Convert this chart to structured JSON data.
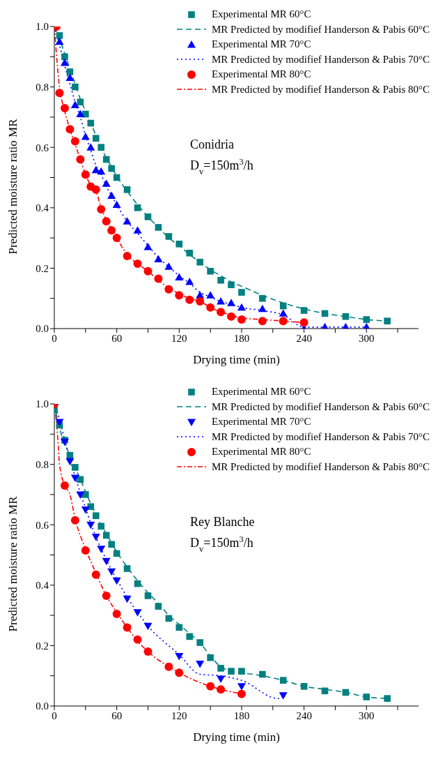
{
  "chart_data": [
    {
      "type": "scatter",
      "xlabel": "Drying time (min)",
      "ylabel": "Predicted moisture ratio MR",
      "annotations": [
        "Conidria",
        "D$_{v}$=150m$^{3}$/h"
      ],
      "xlim": [
        0,
        350
      ],
      "ylim": [
        0,
        1
      ],
      "xticks": [
        0,
        {
          "value": 30,
          "label": null
        },
        60,
        {
          "value": 90,
          "label": null
        },
        120,
        {
          "value": 150,
          "label": null
        },
        180,
        {
          "value": 210,
          "label": null
        },
        240,
        {
          "value": 270,
          "label": null
        },
        300,
        {
          "value": 330,
          "label": null
        }
      ],
      "yticks": [
        {
          "value": 0,
          "label": "0.0"
        },
        {
          "value": 0.1,
          "label": null
        },
        {
          "value": 0.2,
          "label": "0.2"
        },
        {
          "value": 0.3,
          "label": null
        },
        {
          "value": 0.4,
          "label": "0.4"
        },
        {
          "value": 0.5,
          "label": null
        },
        {
          "value": 0.6,
          "label": "0.6"
        },
        {
          "value": 0.7,
          "label": null
        },
        {
          "value": 0.8,
          "label": "0.8"
        },
        {
          "value": 0.9,
          "label": null
        },
        {
          "value": 1,
          "label": "1.0"
        }
      ],
      "grid": false,
      "legend": "top right",
      "series": [
        {
          "name": "Experimental MR 60°C",
          "color": "#008080",
          "marker": "square",
          "x": [
            5,
            10,
            15,
            20,
            25,
            30,
            35,
            40,
            45,
            50,
            55,
            60,
            70,
            80,
            90,
            100,
            110,
            120,
            130,
            140,
            150,
            160,
            170,
            180,
            200,
            220,
            240,
            260,
            280,
            300,
            320
          ],
          "values": [
            0.97,
            0.9,
            0.85,
            0.8,
            0.75,
            0.71,
            0.68,
            0.63,
            0.6,
            0.56,
            0.53,
            0.5,
            0.46,
            0.4,
            0.37,
            0.335,
            0.305,
            0.28,
            0.25,
            0.22,
            0.19,
            0.16,
            0.145,
            0.12,
            0.1,
            0.075,
            0.06,
            0.05,
            0.04,
            0.03,
            0.025
          ]
        },
        {
          "type": "line",
          "name": "MR Predicted by modifief Handerson & Pabis 60°C",
          "color": "#008080",
          "line_style": "dashed",
          "x": [
            0,
            5,
            10,
            15,
            20,
            25,
            30,
            35,
            40,
            45,
            50,
            55,
            60,
            70,
            80,
            90,
            100,
            110,
            120,
            130,
            140,
            150,
            160,
            170,
            180,
            200,
            220,
            240,
            260,
            280,
            300,
            320
          ],
          "values": [
            1,
            0.96,
            0.91,
            0.86,
            0.81,
            0.76,
            0.72,
            0.68,
            0.64,
            0.6,
            0.565,
            0.535,
            0.505,
            0.455,
            0.41,
            0.37,
            0.335,
            0.3,
            0.275,
            0.245,
            0.22,
            0.195,
            0.175,
            0.155,
            0.14,
            0.11,
            0.085,
            0.065,
            0.05,
            0.04,
            0.03,
            0.025
          ]
        },
        {
          "name": "Experimental MR 70°C",
          "color": "#0000ff",
          "marker": "triangle",
          "x": [
            5,
            10,
            15,
            20,
            25,
            30,
            35,
            40,
            45,
            50,
            55,
            60,
            70,
            80,
            90,
            100,
            110,
            120,
            130,
            140,
            150,
            160,
            170,
            180,
            200,
            220,
            240,
            260,
            280,
            300
          ],
          "values": [
            0.95,
            0.88,
            0.83,
            0.74,
            0.71,
            0.635,
            0.6,
            0.525,
            0.52,
            0.48,
            0.44,
            0.41,
            0.355,
            0.325,
            0.27,
            0.23,
            0.205,
            0.17,
            0.155,
            0.11,
            0.11,
            0.09,
            0.085,
            0.07,
            0.065,
            0.05,
            0.0,
            0.005,
            0.005,
            0.005
          ]
        },
        {
          "type": "line",
          "name": "MR Predicted by modifief Handerson & Pabis 70°C",
          "color": "#0000ff",
          "line_style": "dotted",
          "x": [
            0,
            5,
            10,
            15,
            20,
            25,
            30,
            35,
            40,
            45,
            50,
            55,
            60,
            70,
            80,
            90,
            100,
            110,
            120,
            130,
            140,
            150,
            160,
            170,
            180,
            200,
            220,
            240,
            260,
            280,
            300
          ],
          "values": [
            1,
            0.94,
            0.87,
            0.81,
            0.75,
            0.7,
            0.64,
            0.59,
            0.54,
            0.51,
            0.47,
            0.44,
            0.41,
            0.355,
            0.315,
            0.275,
            0.235,
            0.205,
            0.175,
            0.15,
            0.12,
            0.105,
            0.09,
            0.08,
            0.07,
            0.06,
            0.045,
            0.005,
            0.005,
            0.005,
            0.005
          ]
        },
        {
          "name": "Experimental MR 80°C",
          "color": "#ff0000",
          "marker": "circle",
          "x": [
            2,
            5,
            10,
            15,
            20,
            25,
            30,
            35,
            40,
            45,
            50,
            55,
            60,
            70,
            80,
            90,
            100,
            110,
            120,
            130,
            140,
            150,
            160,
            170,
            180,
            200,
            220,
            240
          ],
          "values": [
            1,
            0.78,
            0.73,
            0.66,
            0.62,
            0.56,
            0.51,
            0.47,
            0.46,
            0.395,
            0.355,
            0.325,
            0.3,
            0.24,
            0.215,
            0.19,
            0.165,
            0.13,
            0.11,
            0.095,
            0.09,
            0.07,
            0.055,
            0.04,
            0.03,
            0.025,
            0.025,
            0.02
          ]
        },
        {
          "type": "line",
          "name": "MR Predicted by modifief Handerson & Pabis 80°C",
          "color": "#ff0000",
          "line_style": "dashdot",
          "x": [
            0,
            5,
            10,
            15,
            20,
            25,
            30,
            35,
            40,
            45,
            50,
            55,
            60,
            70,
            80,
            90,
            100,
            110,
            120,
            130,
            140,
            150,
            160,
            170,
            180,
            200,
            220,
            240
          ],
          "values": [
            1,
            0.8,
            0.72,
            0.66,
            0.61,
            0.56,
            0.51,
            0.475,
            0.455,
            0.4,
            0.36,
            0.33,
            0.3,
            0.245,
            0.215,
            0.19,
            0.16,
            0.135,
            0.115,
            0.1,
            0.09,
            0.07,
            0.055,
            0.045,
            0.035,
            0.03,
            0.025,
            0.02
          ]
        }
      ]
    },
    {
      "type": "scatter",
      "xlabel": "Drying time (min)",
      "ylabel": "Predicted moisture ratio MR",
      "annotations": [
        "Rey Blanche",
        "D$_{v}$=150m$^{3}$/h"
      ],
      "xlim": [
        0,
        350
      ],
      "ylim": [
        0,
        1
      ],
      "xticks": [
        0,
        {
          "value": 30,
          "label": null
        },
        60,
        {
          "value": 90,
          "label": null
        },
        120,
        {
          "value": 150,
          "label": null
        },
        180,
        {
          "value": 210,
          "label": null
        },
        240,
        {
          "value": 270,
          "label": null
        },
        300,
        {
          "value": 330,
          "label": null
        }
      ],
      "yticks": [
        {
          "value": 0,
          "label": "0.0"
        },
        {
          "value": 0.1,
          "label": null
        },
        {
          "value": 0.2,
          "label": "0.2"
        },
        {
          "value": 0.3,
          "label": null
        },
        {
          "value": 0.4,
          "label": "0.4"
        },
        {
          "value": 0.5,
          "label": null
        },
        {
          "value": 0.6,
          "label": "0.6"
        },
        {
          "value": 0.7,
          "label": null
        },
        {
          "value": 0.8,
          "label": "0.8"
        },
        {
          "value": 0.9,
          "label": null
        },
        {
          "value": 1,
          "label": "1.0"
        }
      ],
      "grid": false,
      "legend": "top right",
      "series": [
        {
          "name": "Experimental MR 60°C",
          "color": "#008080",
          "marker": "square",
          "x": [
            0,
            5,
            10,
            15,
            20,
            25,
            30,
            35,
            40,
            45,
            50,
            55,
            60,
            70,
            80,
            90,
            100,
            110,
            120,
            130,
            140,
            150,
            160,
            170,
            180,
            200,
            220,
            240,
            260,
            280,
            300,
            320
          ],
          "values": [
            0.98,
            0.93,
            0.88,
            0.83,
            0.79,
            0.75,
            0.7,
            0.66,
            0.63,
            0.595,
            0.565,
            0.535,
            0.505,
            0.455,
            0.405,
            0.365,
            0.33,
            0.29,
            0.26,
            0.23,
            0.21,
            0.16,
            0.125,
            0.115,
            0.115,
            0.105,
            0.085,
            0.065,
            0.05,
            0.045,
            0.03,
            0.025
          ]
        },
        {
          "type": "line",
          "name": "MR Predicted by modifief Handerson & Pabis 60°C",
          "color": "#008080",
          "line_style": "dashed",
          "x": [
            0,
            5,
            10,
            15,
            20,
            25,
            30,
            35,
            40,
            45,
            50,
            55,
            60,
            70,
            80,
            90,
            100,
            110,
            120,
            130,
            140,
            150,
            160,
            170,
            180,
            200,
            220,
            240,
            260,
            280,
            300,
            320
          ],
          "values": [
            1,
            0.92,
            0.87,
            0.83,
            0.79,
            0.75,
            0.71,
            0.67,
            0.635,
            0.6,
            0.57,
            0.54,
            0.51,
            0.46,
            0.415,
            0.375,
            0.34,
            0.3,
            0.27,
            0.24,
            0.21,
            0.165,
            0.13,
            0.115,
            0.11,
            0.1,
            0.085,
            0.065,
            0.055,
            0.045,
            0.03,
            0.025
          ]
        },
        {
          "name": "Experimental MR 70°C",
          "color": "#0000ff",
          "marker": "triangle-down",
          "x": [
            5,
            10,
            15,
            20,
            25,
            30,
            35,
            40,
            45,
            50,
            55,
            60,
            70,
            80,
            90,
            120,
            140,
            160,
            180,
            220
          ],
          "values": [
            0.94,
            0.875,
            0.81,
            0.755,
            0.7,
            0.65,
            0.6,
            0.56,
            0.52,
            0.48,
            0.445,
            0.415,
            0.355,
            0.31,
            0.265,
            0.165,
            0.14,
            0.09,
            0.065,
            0.035
          ]
        },
        {
          "type": "line",
          "name": "MR Predicted by modifief Handerson & Pabis 70°C",
          "color": "#0000ff",
          "line_style": "dotted",
          "x": [
            0,
            5,
            10,
            15,
            20,
            25,
            30,
            35,
            40,
            45,
            50,
            55,
            60,
            70,
            80,
            90,
            120,
            140,
            160,
            180,
            215,
            220
          ],
          "values": [
            1,
            0.95,
            0.88,
            0.815,
            0.76,
            0.705,
            0.655,
            0.605,
            0.56,
            0.52,
            0.485,
            0.45,
            0.42,
            0.36,
            0.31,
            0.265,
            0.17,
            0.105,
            0.1,
            0.085,
            0.025,
            0.035
          ]
        },
        {
          "name": "Experimental MR 80°C",
          "color": "#ff0000",
          "marker": "circle",
          "x": [
            0,
            10,
            20,
            30,
            40,
            50,
            60,
            70,
            80,
            90,
            110,
            120,
            150,
            160,
            180
          ],
          "values": [
            1,
            0.73,
            0.615,
            0.515,
            0.435,
            0.365,
            0.305,
            0.26,
            0.22,
            0.18,
            0.13,
            0.11,
            0.065,
            0.055,
            0.04
          ]
        },
        {
          "type": "line",
          "name": "MR Predicted by modifief Handerson & Pabis 80°C",
          "color": "#ff0000",
          "line_style": "dashdot",
          "x": [
            0,
            3,
            5,
            10,
            15,
            20,
            30,
            40,
            50,
            60,
            70,
            80,
            90,
            110,
            120,
            150,
            160,
            180
          ],
          "values": [
            1,
            0.9,
            0.8,
            0.73,
            0.7,
            0.62,
            0.52,
            0.44,
            0.365,
            0.31,
            0.26,
            0.215,
            0.18,
            0.13,
            0.11,
            0.065,
            0.055,
            0.04
          ]
        }
      ]
    }
  ]
}
